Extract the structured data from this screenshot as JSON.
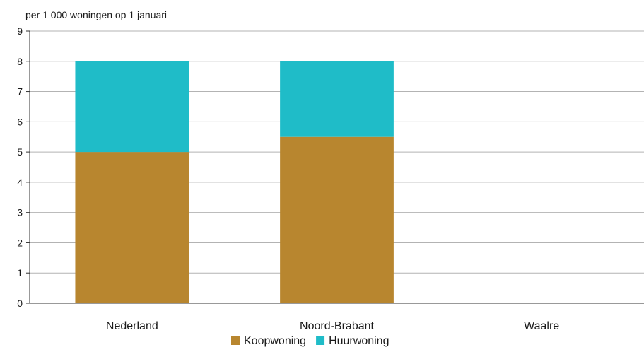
{
  "chart_data": {
    "type": "bar",
    "stacked": true,
    "subtitle": "per 1 000 woningen op 1 januari",
    "categories": [
      "Nederland",
      "Noord-Brabant",
      "Waalre"
    ],
    "series": [
      {
        "name": "Koopwoning",
        "values": [
          5.0,
          5.5,
          0
        ],
        "color": "#b8862f"
      },
      {
        "name": "Huurwoning",
        "values": [
          3.0,
          2.5,
          0
        ],
        "color": "#1fbcc8"
      }
    ],
    "ylim": [
      0,
      9
    ],
    "yticks": [
      0,
      1,
      2,
      3,
      4,
      5,
      6,
      7,
      8,
      9
    ],
    "grid": true,
    "legend_position": "bottom-center",
    "gridline_color": "#b3b3b3",
    "axis_color": "#333333"
  }
}
